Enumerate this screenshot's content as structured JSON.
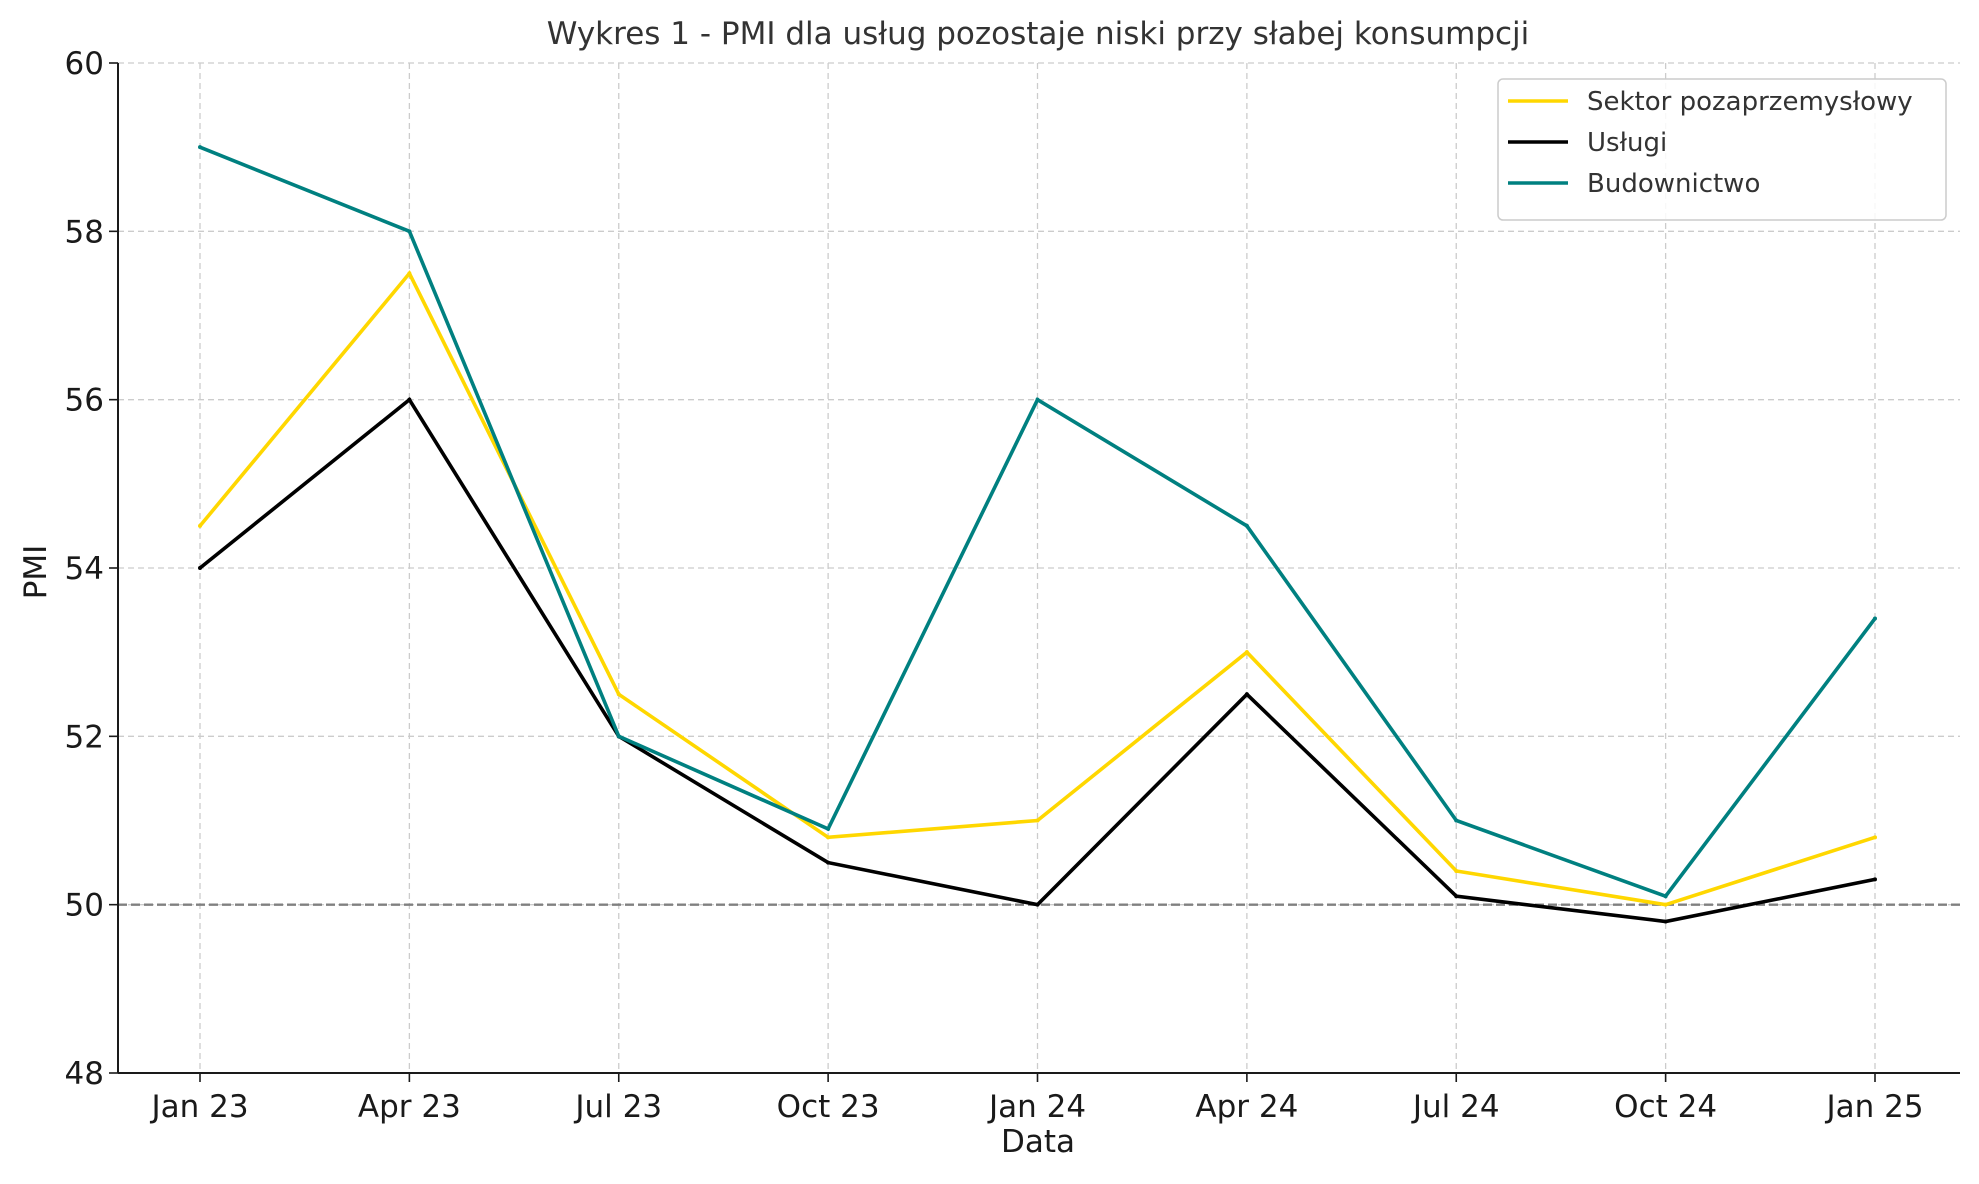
{
  "chart_data": {
    "type": "line",
    "title": "Wykres 1 - PMI dla usług pozostaje niski przy słabej konsumpcji",
    "xlabel": "Data",
    "ylabel": "PMI",
    "categories": [
      "Jan 23",
      "Apr 23",
      "Jul 23",
      "Oct 23",
      "Jan 24",
      "Apr 24",
      "Jul 24",
      "Oct 24",
      "Jan 25"
    ],
    "ylim": [
      48,
      60
    ],
    "yticks": [
      48,
      50,
      52,
      54,
      56,
      58,
      60
    ],
    "grid": true,
    "legend_position": "top-right",
    "reference_line": {
      "y": 50,
      "style": "dashed",
      "color": "#808080"
    },
    "series": [
      {
        "name": "Sektor pozaprzemysłowy",
        "color": "#FFD700",
        "values": [
          54.5,
          57.5,
          52.5,
          50.8,
          51.0,
          53.0,
          50.4,
          50.0,
          50.8
        ]
      },
      {
        "name": "Usługi",
        "color": "#000000",
        "values": [
          54.0,
          56.0,
          52.0,
          50.5,
          50.0,
          52.5,
          50.1,
          49.8,
          50.3
        ]
      },
      {
        "name": "Budownictwo",
        "color": "#008080",
        "values": [
          59.0,
          58.0,
          52.0,
          50.9,
          56.0,
          54.5,
          51.0,
          50.1,
          53.4
        ]
      }
    ]
  }
}
